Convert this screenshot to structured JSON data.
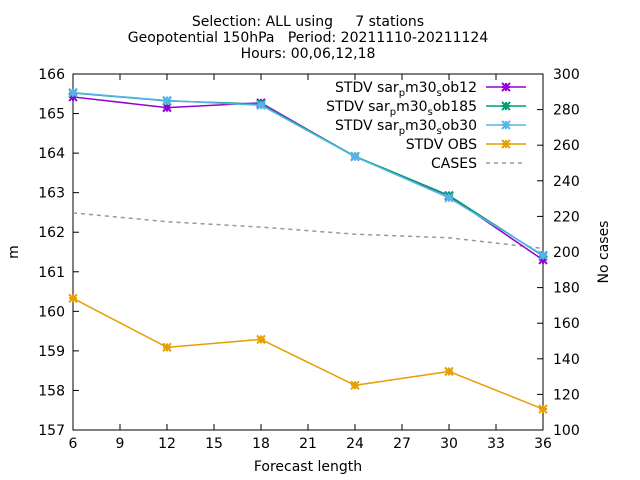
{
  "chart_data": {
    "type": "line",
    "title_lines": [
      "Selection: ALL using     7 stations",
      "Geopotential 150hPa   Period: 20211110-20211124",
      "Hours: 00,06,12,18"
    ],
    "xlabel": "Forecast length",
    "ylabel": "m",
    "y2label": "No cases",
    "xlim": [
      6,
      36
    ],
    "ylim": [
      157,
      166
    ],
    "y2lim": [
      100,
      300
    ],
    "xticks": [
      6,
      9,
      12,
      15,
      18,
      21,
      24,
      27,
      30,
      33,
      36
    ],
    "yticks": [
      157,
      158,
      159,
      160,
      161,
      162,
      163,
      164,
      165,
      166
    ],
    "y2ticks": [
      100,
      120,
      140,
      160,
      180,
      200,
      220,
      240,
      260,
      280,
      300
    ],
    "grid": false,
    "legend_position": "top-right",
    "x": [
      6,
      12,
      18,
      24,
      30,
      36
    ],
    "series": [
      {
        "name_parts": [
          "STDV sar",
          "p",
          "m30",
          "s",
          "ob12"
        ],
        "color": "#9400d3",
        "axis": "y",
        "values": [
          165.42,
          165.15,
          165.27,
          163.91,
          162.92,
          161.3
        ]
      },
      {
        "name_parts": [
          "STDV sar",
          "p",
          "m30",
          "s",
          "ob185"
        ],
        "color": "#009e73",
        "axis": "y",
        "values": [
          165.52,
          165.32,
          165.24,
          163.92,
          162.93,
          161.4
        ]
      },
      {
        "name_parts": [
          "STDV sar",
          "p",
          "m30",
          "s",
          "ob30"
        ],
        "color": "#56b4e9",
        "axis": "y",
        "values": [
          165.53,
          165.33,
          165.21,
          163.91,
          162.87,
          161.42
        ]
      },
      {
        "name": "STDV OBS",
        "color": "#e69f00",
        "axis": "y",
        "values": [
          160.33,
          159.09,
          159.29,
          158.13,
          158.48,
          157.53
        ]
      },
      {
        "name": "CASES",
        "color": "#999999",
        "axis": "y2",
        "dashed": true,
        "values": [
          222,
          217,
          214,
          210,
          208,
          202
        ]
      }
    ]
  }
}
